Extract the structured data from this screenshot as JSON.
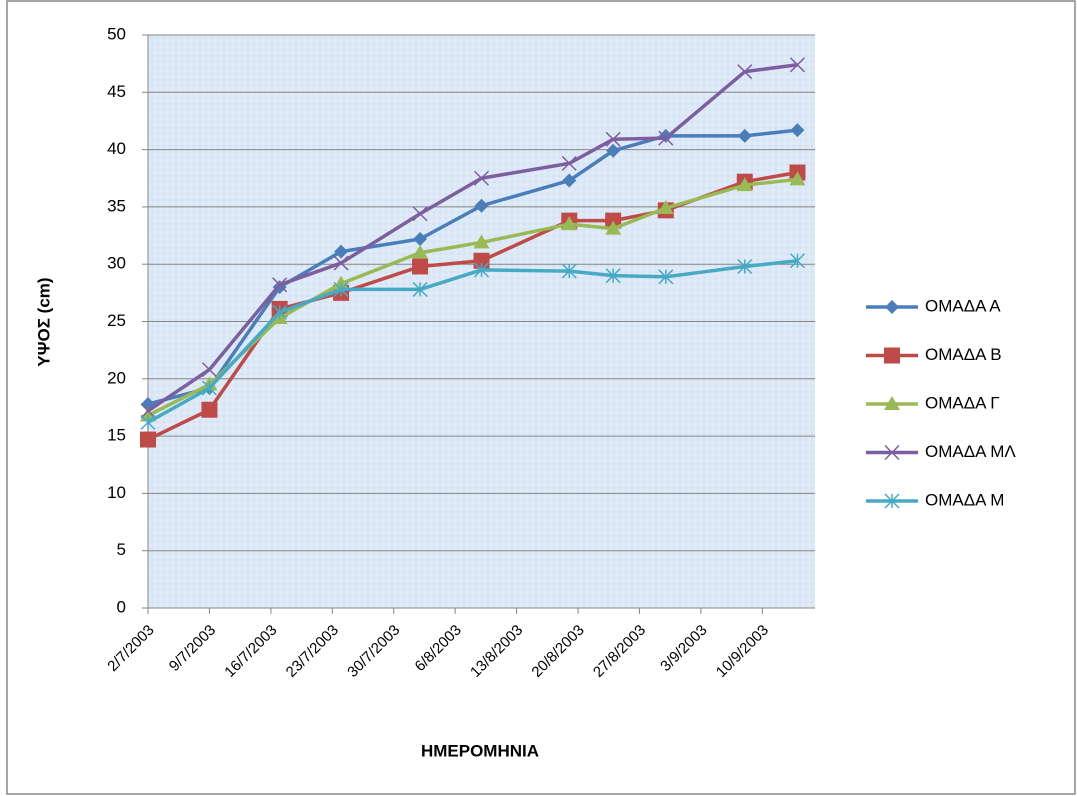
{
  "chart_data": {
    "type": "line",
    "x_label": "ΗΜΕΡΟΜΗΝΙΑ",
    "y_label": "ΥΨΟΣ (cm)",
    "x": [
      "2/7/2003",
      "9/7/2003",
      "17/7/2003",
      "24/7/2003",
      "2/8/2003",
      "9/8/2003",
      "19/8/2003",
      "24/8/2003",
      "30/8/2003",
      "8/9/2003",
      "14/9/2003"
    ],
    "xlim": [
      "2/7/2003",
      "16/9/2003"
    ],
    "xticks": [
      "2/7/2003",
      "9/7/2003",
      "16/7/2003",
      "23/7/2003",
      "30/7/2003",
      "6/8/2003",
      "13/8/2003",
      "20/8/2003",
      "27/8/2003",
      "3/9/2003",
      "10/9/2003"
    ],
    "ylim": [
      0,
      50
    ],
    "yticks": [
      0,
      5,
      10,
      15,
      20,
      25,
      30,
      35,
      40,
      45,
      50
    ],
    "grid": true,
    "legend": "right",
    "series": [
      {
        "name": "ΟΜΑΔΑ Α",
        "color": "#4a7ebb",
        "marker": "diamond",
        "values": [
          17.8,
          19.2,
          28.0,
          31.1,
          32.2,
          35.1,
          37.3,
          39.9,
          41.2,
          41.2,
          41.7
        ]
      },
      {
        "name": "ΟΜΑΔΑ Β",
        "color": "#be4b48",
        "marker": "square",
        "values": [
          14.7,
          17.3,
          26.1,
          27.5,
          29.8,
          30.3,
          33.8,
          33.8,
          34.7,
          37.2,
          38.0
        ]
      },
      {
        "name": "ΟΜΑΔΑ Γ",
        "color": "#98b954",
        "marker": "triangle",
        "values": [
          16.8,
          19.5,
          25.3,
          28.3,
          31.0,
          31.9,
          33.5,
          33.1,
          34.9,
          36.9,
          37.4
        ]
      },
      {
        "name": "ΟΜΑΔΑ ΜΛ",
        "color": "#7d5fa0",
        "marker": "x",
        "values": [
          17.2,
          20.8,
          28.2,
          30.1,
          34.4,
          37.5,
          38.8,
          40.9,
          41.0,
          46.8,
          47.4
        ]
      },
      {
        "name": "ΟΜΑΔΑ Μ",
        "color": "#46aac5",
        "marker": "star",
        "values": [
          16.2,
          19.2,
          25.8,
          27.8,
          27.8,
          29.5,
          29.4,
          29.0,
          28.9,
          29.8,
          30.3
        ]
      }
    ]
  }
}
